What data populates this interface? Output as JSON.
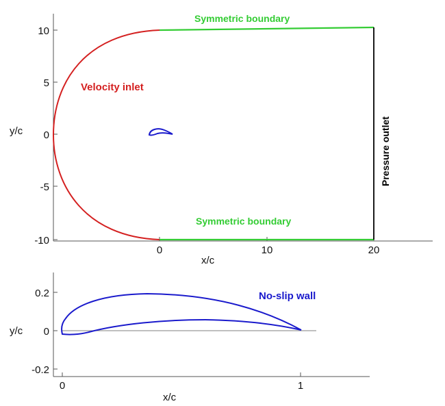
{
  "top_plot": {
    "ylabel": "y/c",
    "xlabel": "x/c",
    "y_ticks": [
      "10",
      "5",
      "0",
      "-5",
      "-10"
    ],
    "x_ticks": [
      "0",
      "10",
      "20"
    ],
    "labels": {
      "velocity_inlet": "Velocity inlet",
      "symmetric_top": "Symmetric boundary",
      "symmetric_bottom": "Symmetric boundary",
      "pressure_outlet": "Pressure outlet"
    },
    "colors": {
      "inlet": "#d42020",
      "symmetric": "#33cc33",
      "outlet": "#000000",
      "airfoil": "#1a1acc"
    }
  },
  "bottom_plot": {
    "ylabel": "y/c",
    "xlabel": "x/c",
    "y_ticks": [
      "0.2",
      "0",
      "-0.2"
    ],
    "x_ticks": [
      "0",
      "1"
    ],
    "labels": {
      "no_slip_wall": "No-slip wall"
    },
    "colors": {
      "airfoil": "#1a1acc",
      "chord": "#999999"
    }
  }
}
